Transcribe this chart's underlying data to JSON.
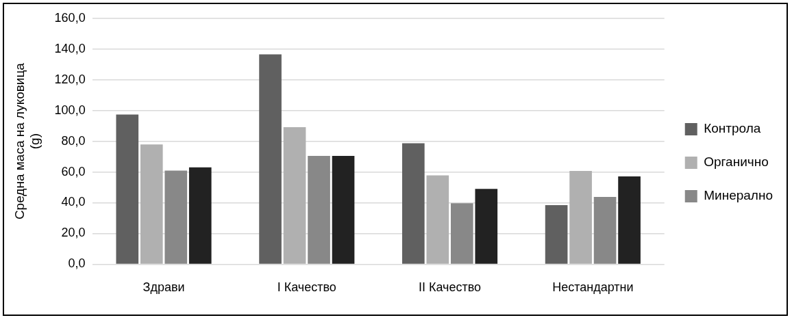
{
  "chart_data": {
    "type": "bar",
    "ylabel": "Средна маса на луковица (g)",
    "categories": [
      "Здрави",
      "I Качество",
      "II Качество",
      "Нестандартни"
    ],
    "series": [
      {
        "name": "Контрола",
        "color": "#606060",
        "values": [
          97.4,
          136.5,
          78.7,
          38.4
        ]
      },
      {
        "name": "Органично",
        "color": "#b0b0b0",
        "values": [
          77.9,
          89.2,
          57.8,
          60.7
        ]
      },
      {
        "name": "Минерално",
        "color": "#888888",
        "values": [
          60.9,
          70.5,
          39.7,
          43.8
        ]
      },
      {
        "color": "#222222",
        "values": [
          63.0,
          70.5,
          49.0,
          57.1
        ]
      }
    ],
    "ylim": [
      0,
      160
    ],
    "yticks": [
      {
        "value": 0,
        "label": "0,0"
      },
      {
        "value": 20,
        "label": "20,0"
      },
      {
        "value": 40,
        "label": "40,0"
      },
      {
        "value": 60,
        "label": "60,0"
      },
      {
        "value": 80,
        "label": "80,0"
      },
      {
        "value": 100,
        "label": "100,0"
      },
      {
        "value": 120,
        "label": "120,0"
      },
      {
        "value": 140,
        "label": "140,0"
      },
      {
        "value": 160,
        "label": "160,0"
      }
    ],
    "grid": "y",
    "legend": "right"
  }
}
